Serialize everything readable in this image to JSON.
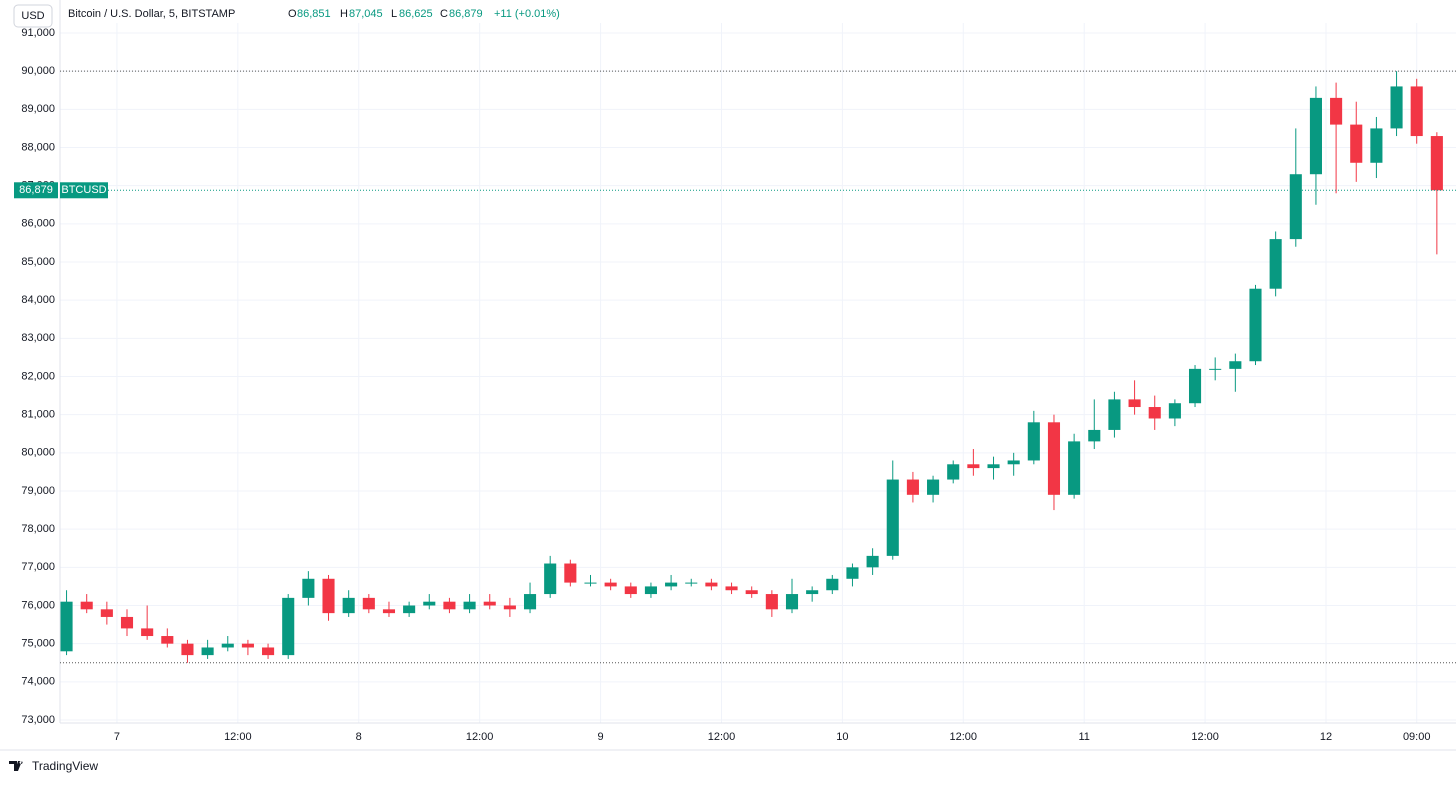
{
  "header": {
    "currency": "USD",
    "symbol": "Bitcoin / U.S. Dollar, 5, BITSTAMP",
    "o_label": "O",
    "open": "86,851",
    "h_label": "H",
    "high": "87,045",
    "l_label": "L",
    "low": "86,625",
    "c_label": "C",
    "close": "86,879",
    "change": "+11 (+0.01%)"
  },
  "footer": {
    "brand": "TradingView"
  },
  "chart_data": {
    "type": "candlestick",
    "up_color": "#089981",
    "down_color": "#f23645",
    "ylim": [
      73000,
      91000
    ],
    "yticks": [
      {
        "value": 73000,
        "label": "73,000"
      },
      {
        "value": 74000,
        "label": "74,000"
      },
      {
        "value": 75000,
        "label": "75,000"
      },
      {
        "value": 76000,
        "label": "76,000"
      },
      {
        "value": 77000,
        "label": "77,000"
      },
      {
        "value": 78000,
        "label": "78,000"
      },
      {
        "value": 79000,
        "label": "79,000"
      },
      {
        "value": 80000,
        "label": "80,000"
      },
      {
        "value": 81000,
        "label": "81,000"
      },
      {
        "value": 82000,
        "label": "82,000"
      },
      {
        "value": 83000,
        "label": "83,000"
      },
      {
        "value": 84000,
        "label": "84,000"
      },
      {
        "value": 85000,
        "label": "85,000"
      },
      {
        "value": 86000,
        "label": "86,000"
      },
      {
        "value": 87000,
        "label": "87,000"
      },
      {
        "value": 88000,
        "label": "88,000"
      },
      {
        "value": 89000,
        "label": "89,000"
      },
      {
        "value": 90000,
        "label": "90,000"
      },
      {
        "value": 91000,
        "label": "91,000"
      }
    ],
    "xlim": [
      -5.65,
      132.9
    ],
    "xticks": [
      {
        "value": 0,
        "label": "7"
      },
      {
        "value": 12,
        "label": "12:00"
      },
      {
        "value": 24,
        "label": "8"
      },
      {
        "value": 36,
        "label": "12:00"
      },
      {
        "value": 48,
        "label": "9"
      },
      {
        "value": 60,
        "label": "12:00"
      },
      {
        "value": 72,
        "label": "10"
      },
      {
        "value": 84,
        "label": "12:00"
      },
      {
        "value": 96,
        "label": "11"
      },
      {
        "value": 108,
        "label": "12:00"
      },
      {
        "value": 120,
        "label": "12"
      },
      {
        "value": 129,
        "label": "09:00"
      }
    ],
    "high_line": 90000,
    "low_line": 74500,
    "last_price": {
      "value": 86879,
      "label": "86,879"
    },
    "ticker": "BTCUSD",
    "candles": [
      [
        -5,
        74800,
        76400,
        74700,
        76100
      ],
      [
        -3,
        76100,
        76300,
        75800,
        75900
      ],
      [
        -1,
        75900,
        76100,
        75500,
        75700
      ],
      [
        1,
        75700,
        75900,
        75200,
        75400
      ],
      [
        3,
        75400,
        76000,
        75100,
        75200
      ],
      [
        5,
        75200,
        75400,
        74900,
        75000
      ],
      [
        7,
        75000,
        75100,
        74500,
        74700
      ],
      [
        9,
        74700,
        75100,
        74600,
        74900
      ],
      [
        11,
        74900,
        75200,
        74800,
        75000
      ],
      [
        13,
        75000,
        75100,
        74700,
        74900
      ],
      [
        15,
        74900,
        75000,
        74600,
        74700
      ],
      [
        17,
        74700,
        76300,
        74600,
        76200
      ],
      [
        19,
        76200,
        76900,
        76000,
        76700
      ],
      [
        21,
        76700,
        76800,
        75600,
        75800
      ],
      [
        23,
        75800,
        76400,
        75700,
        76200
      ],
      [
        25,
        76200,
        76300,
        75800,
        75900
      ],
      [
        27,
        75900,
        76100,
        75700,
        75800
      ],
      [
        29,
        75800,
        76100,
        75700,
        76000
      ],
      [
        31,
        76000,
        76300,
        75900,
        76100
      ],
      [
        33,
        76100,
        76200,
        75800,
        75900
      ],
      [
        35,
        75900,
        76300,
        75800,
        76100
      ],
      [
        37,
        76100,
        76300,
        75900,
        76000
      ],
      [
        39,
        76000,
        76200,
        75700,
        75900
      ],
      [
        41,
        75900,
        76600,
        75800,
        76300
      ],
      [
        43,
        76300,
        77300,
        76200,
        77100
      ],
      [
        45,
        77100,
        77200,
        76500,
        76600
      ],
      [
        47,
        76600,
        76800,
        76500,
        76600
      ],
      [
        49,
        76600,
        76700,
        76400,
        76500
      ],
      [
        51,
        76500,
        76600,
        76200,
        76300
      ],
      [
        53,
        76300,
        76600,
        76200,
        76500
      ],
      [
        55,
        76500,
        76800,
        76400,
        76600
      ],
      [
        57,
        76600,
        76700,
        76500,
        76600
      ],
      [
        59,
        76600,
        76700,
        76400,
        76500
      ],
      [
        61,
        76500,
        76600,
        76300,
        76400
      ],
      [
        63,
        76400,
        76500,
        76200,
        76300
      ],
      [
        65,
        76300,
        76400,
        75700,
        75900
      ],
      [
        67,
        75900,
        76700,
        75800,
        76300
      ],
      [
        69,
        76300,
        76500,
        76100,
        76400
      ],
      [
        71,
        76400,
        76800,
        76300,
        76700
      ],
      [
        73,
        76700,
        77100,
        76500,
        77000
      ],
      [
        75,
        77000,
        77500,
        76800,
        77300
      ],
      [
        77,
        77300,
        79800,
        77200,
        79300
      ],
      [
        79,
        79300,
        79500,
        78700,
        78900
      ],
      [
        81,
        78900,
        79400,
        78700,
        79300
      ],
      [
        83,
        79300,
        79800,
        79200,
        79700
      ],
      [
        85,
        79700,
        80100,
        79400,
        79600
      ],
      [
        87,
        79600,
        79900,
        79300,
        79700
      ],
      [
        89,
        79700,
        80000,
        79400,
        79800
      ],
      [
        91,
        79800,
        81100,
        79700,
        80800
      ],
      [
        93,
        80800,
        81000,
        78500,
        78900
      ],
      [
        95,
        78900,
        80500,
        78800,
        80300
      ],
      [
        97,
        80300,
        81400,
        80100,
        80600
      ],
      [
        99,
        80600,
        81600,
        80400,
        81400
      ],
      [
        101,
        81400,
        81900,
        81000,
        81200
      ],
      [
        103,
        81200,
        81500,
        80600,
        80900
      ],
      [
        105,
        80900,
        81400,
        80700,
        81300
      ],
      [
        107,
        81300,
        82300,
        81200,
        82200
      ],
      [
        109,
        82200,
        82500,
        81900,
        82200
      ],
      [
        111,
        82200,
        82600,
        81600,
        82400
      ],
      [
        113,
        82400,
        84400,
        82300,
        84300
      ],
      [
        115,
        84300,
        85800,
        84100,
        85600
      ],
      [
        117,
        85600,
        88500,
        85400,
        87300
      ],
      [
        119,
        87300,
        89600,
        86500,
        89300
      ],
      [
        121,
        89300,
        89700,
        86800,
        88600
      ],
      [
        123,
        88600,
        89200,
        87100,
        87600
      ],
      [
        125,
        87600,
        88800,
        87200,
        88500
      ],
      [
        127,
        88500,
        90000,
        88300,
        89600
      ],
      [
        129,
        89600,
        89800,
        88100,
        88300
      ],
      [
        131,
        88300,
        88400,
        85200,
        86879
      ]
    ]
  }
}
